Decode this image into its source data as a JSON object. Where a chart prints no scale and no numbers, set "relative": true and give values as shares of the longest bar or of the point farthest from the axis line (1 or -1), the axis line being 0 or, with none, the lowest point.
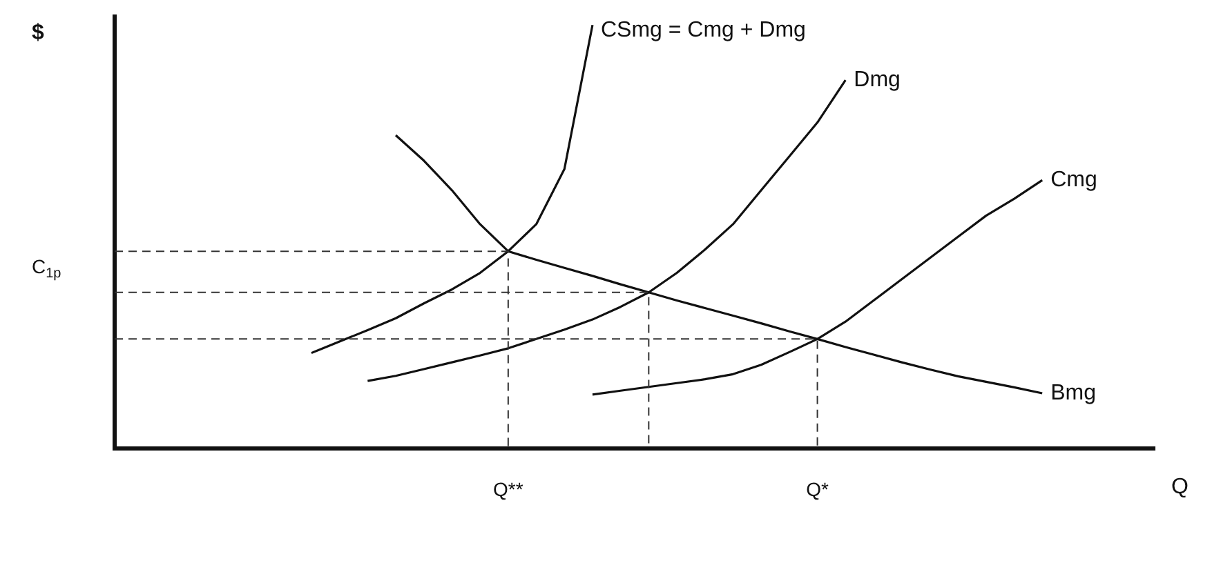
{
  "chart_data": {
    "type": "line",
    "relative": true,
    "xlabel": "Q",
    "ylabel": "$",
    "legend": false,
    "grid": false,
    "marker": "none",
    "line_style": "solid",
    "categories": [
      null,
      null,
      null,
      null,
      null,
      null,
      null,
      null,
      null,
      null,
      null,
      null,
      null,
      null,
      "Q**",
      null,
      null,
      null,
      null,
      null,
      null,
      null,
      null,
      null,
      null,
      "Q*",
      null,
      null,
      null,
      null,
      null,
      null,
      null,
      null,
      null,
      null,
      null,
      null
    ],
    "series": [
      {
        "name": "CSmg = Cmg + Dmg",
        "color": "#111111",
        "values": [
          null,
          null,
          null,
          null,
          null,
          null,
          null,
          0.226,
          0.253,
          0.28,
          0.308,
          0.343,
          0.376,
          0.415,
          0.466,
          0.53,
          0.66,
          1,
          null,
          null,
          null,
          null,
          null,
          null,
          null,
          null,
          null,
          null,
          null,
          null,
          null,
          null,
          null,
          null,
          null,
          null,
          null,
          null
        ]
      },
      {
        "name": "Dmg",
        "color": "#111111",
        "values": [
          null,
          null,
          null,
          null,
          null,
          null,
          null,
          null,
          null,
          0.16,
          0.172,
          0.188,
          0.204,
          0.22,
          0.237,
          0.259,
          0.281,
          0.305,
          0.335,
          0.369,
          0.415,
          0.47,
          0.53,
          0.61,
          0.69,
          0.77,
          0.87,
          null,
          null,
          null,
          null,
          null,
          null,
          null,
          null,
          null,
          null,
          null
        ]
      },
      {
        "name": "Cmg",
        "color": "#111111",
        "values": [
          null,
          null,
          null,
          null,
          null,
          null,
          null,
          null,
          null,
          null,
          null,
          null,
          null,
          null,
          null,
          null,
          null,
          0.128,
          0.137,
          0.146,
          0.155,
          0.164,
          0.176,
          0.198,
          0.228,
          0.259,
          0.3,
          0.35,
          0.4,
          0.45,
          0.5,
          0.55,
          0.59,
          0.634,
          null,
          null,
          null,
          null
        ]
      },
      {
        "name": "Bmg",
        "color": "#111111",
        "values": [
          null,
          null,
          null,
          null,
          null,
          null,
          null,
          null,
          null,
          null,
          0.74,
          0.68,
          0.61,
          0.53,
          0.466,
          0.446,
          0.427,
          0.408,
          0.388,
          0.369,
          0.35,
          0.332,
          0.314,
          0.296,
          0.277,
          0.259,
          0.24,
          0.222,
          0.204,
          0.187,
          0.171,
          0.158,
          0.145,
          0.131,
          null,
          null,
          null,
          null
        ]
      }
    ],
    "ref_lines": [
      {
        "axis": "y",
        "value": 0.466,
        "label": null,
        "line_style": "dashed",
        "color": "#333333"
      },
      {
        "axis": "y",
        "value": 0.369,
        "label": "C$_{1p}$",
        "line_style": "dashed",
        "color": "#333333"
      },
      {
        "axis": "y",
        "value": 0.259,
        "label": null,
        "line_style": "dashed",
        "color": "#333333"
      }
    ]
  }
}
